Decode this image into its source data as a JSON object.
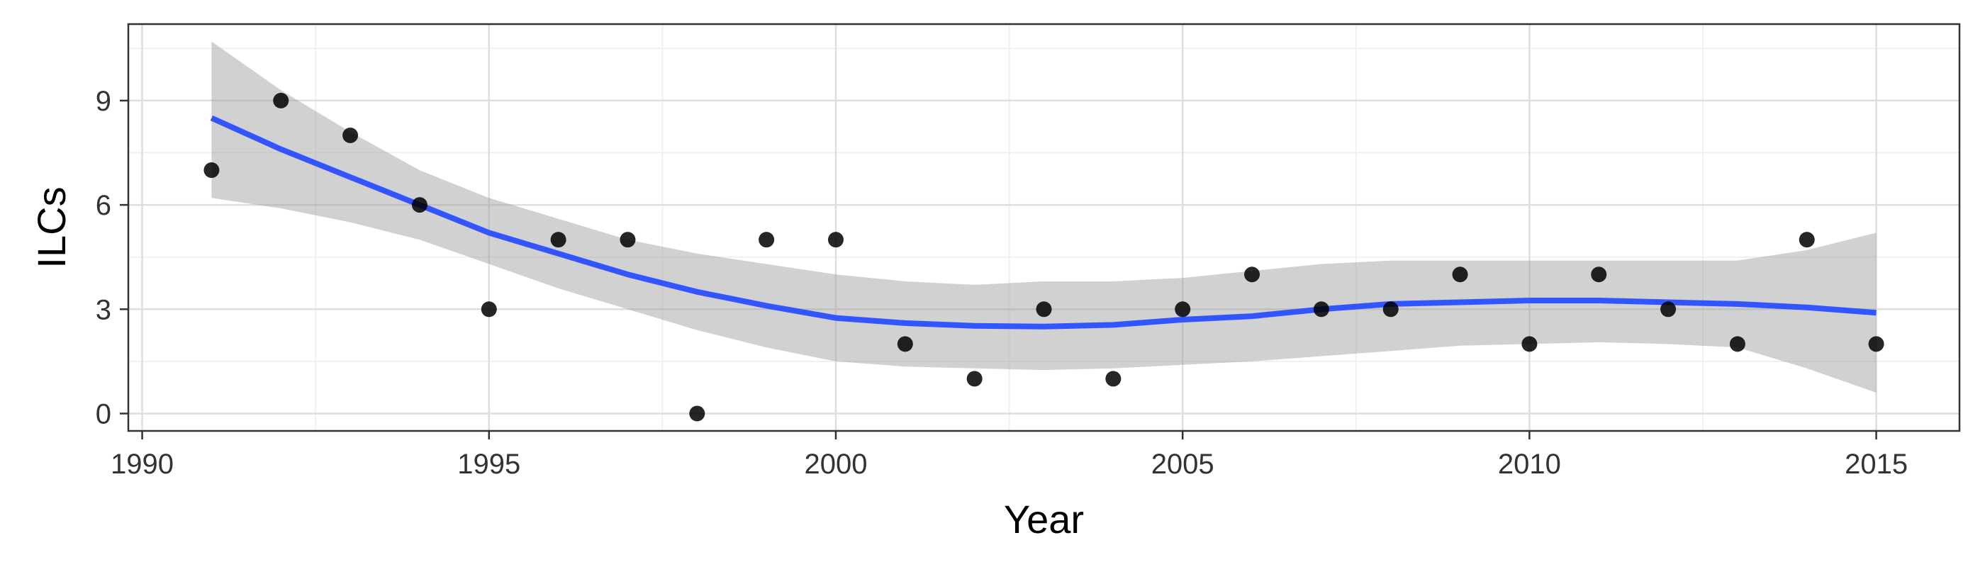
{
  "chart_data": {
    "type": "scatter",
    "xlabel": "Year",
    "ylabel": "ILCs",
    "xlim": [
      1989.8,
      2016.2
    ],
    "ylim": [
      -0.5,
      11.2
    ],
    "x_ticks": [
      1990,
      1995,
      2000,
      2005,
      2010,
      2015
    ],
    "x_tick_labels": [
      "1990",
      "1995",
      "2000",
      "2005",
      "2010",
      "2015"
    ],
    "y_ticks": [
      0,
      3,
      6,
      9
    ],
    "y_tick_labels": [
      "0",
      "3",
      "6",
      "9"
    ],
    "grid": true,
    "legend": "none",
    "colors": {
      "panel_background": "#ffffff",
      "grid_major": "#dedede",
      "grid_minor": "#f0f0f0",
      "border": "#333333",
      "points": "#000000",
      "smooth_line": "#3355ff",
      "confidence_band": "#999999"
    },
    "points": {
      "x": [
        1991,
        1992,
        1993,
        1994,
        1995,
        1996,
        1997,
        1998,
        1999,
        2000,
        2001,
        2002,
        2003,
        2004,
        2005,
        2006,
        2007,
        2008,
        2009,
        2010,
        2011,
        2012,
        2013,
        2014,
        2015
      ],
      "y": [
        7,
        9,
        8,
        6,
        3,
        5,
        5,
        0,
        5,
        5,
        2,
        1,
        3,
        1,
        3,
        4,
        3,
        3,
        4,
        2,
        4,
        3,
        2,
        5,
        2
      ]
    },
    "smooth": {
      "x": [
        1991,
        1992,
        1993,
        1994,
        1995,
        1996,
        1997,
        1998,
        1999,
        2000,
        2001,
        2002,
        2003,
        2004,
        2005,
        2006,
        2007,
        2008,
        2009,
        2010,
        2011,
        2012,
        2013,
        2014,
        2015
      ],
      "y": [
        8.5,
        7.6,
        6.8,
        6.0,
        5.2,
        4.6,
        4.0,
        3.5,
        3.1,
        2.75,
        2.6,
        2.52,
        2.5,
        2.55,
        2.7,
        2.8,
        3.0,
        3.15,
        3.2,
        3.25,
        3.25,
        3.2,
        3.15,
        3.05,
        2.9
      ],
      "lower": [
        6.2,
        5.9,
        5.5,
        5.0,
        4.3,
        3.6,
        3.0,
        2.4,
        1.9,
        1.5,
        1.35,
        1.3,
        1.25,
        1.3,
        1.4,
        1.5,
        1.65,
        1.8,
        1.95,
        2.0,
        2.05,
        2.0,
        1.9,
        1.3,
        0.6
      ],
      "upper": [
        10.7,
        9.3,
        8.1,
        7.0,
        6.2,
        5.6,
        5.0,
        4.6,
        4.3,
        4.0,
        3.8,
        3.7,
        3.8,
        3.8,
        3.9,
        4.1,
        4.3,
        4.4,
        4.4,
        4.4,
        4.4,
        4.4,
        4.4,
        4.7,
        5.2
      ]
    }
  }
}
